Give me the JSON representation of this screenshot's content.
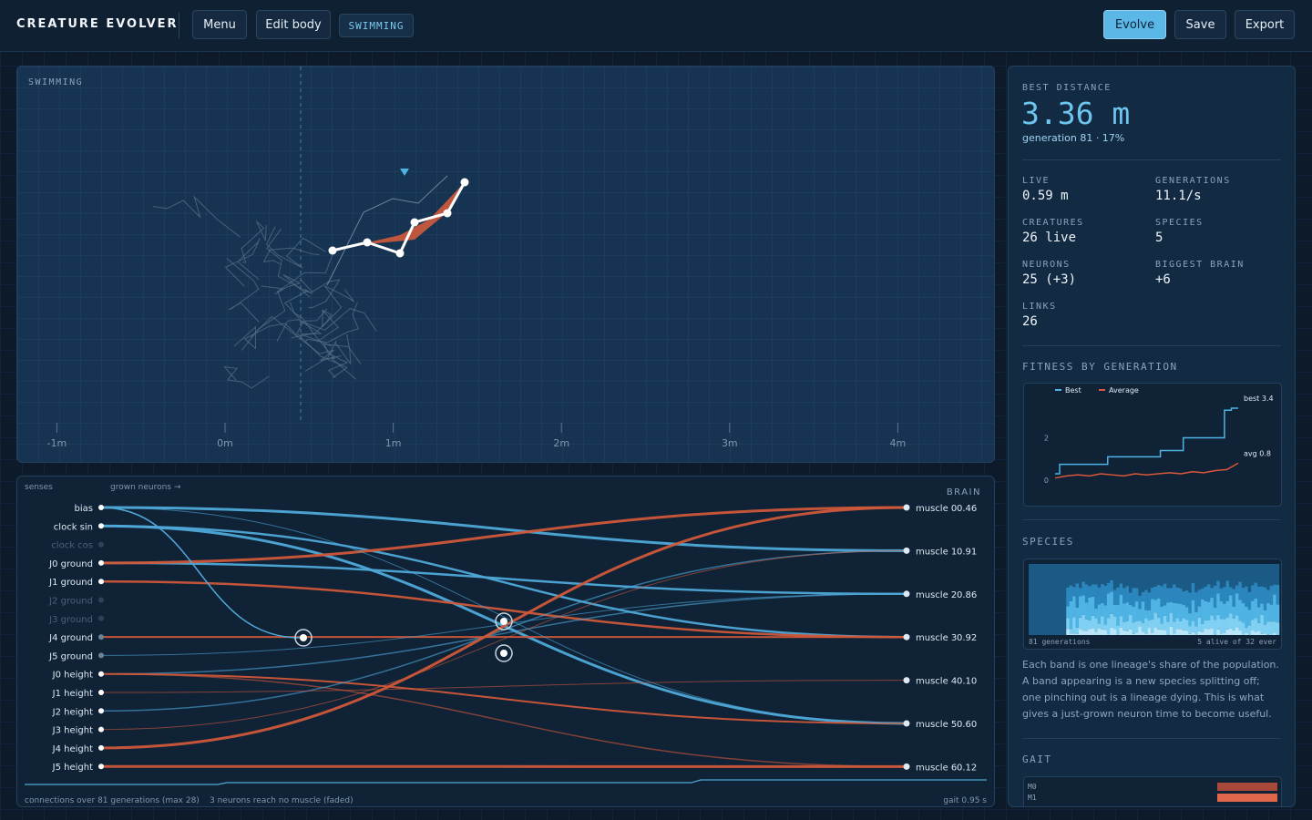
{
  "header": {
    "title": "CREATURE EVOLVER",
    "buttons_left": [
      "Menu",
      "Edit body"
    ],
    "mode_badge": "SWIMMING",
    "buttons_right": [
      "Evolve",
      "Save",
      "Export"
    ]
  },
  "world": {
    "label": "SWIMMING",
    "axis_ticks": [
      {
        "value": -1,
        "label": "-1m"
      },
      {
        "value": 0,
        "label": "0m"
      },
      {
        "value": 1,
        "label": "1m"
      },
      {
        "value": 2,
        "label": "2m"
      },
      {
        "value": 3,
        "label": "3m"
      },
      {
        "value": 4,
        "label": "4m"
      }
    ]
  },
  "stats": {
    "best_label": "BEST DISTANCE",
    "best_value": "3.36 m",
    "best_sub": "generation 81 · 17%",
    "items": [
      {
        "label": "LIVE",
        "value": "0.59 m"
      },
      {
        "label": "GENERATIONS",
        "value": "11.1/s"
      },
      {
        "label": "CREATURES",
        "value": "26 live"
      },
      {
        "label": "SPECIES",
        "value": "5"
      },
      {
        "label": "NEURONS",
        "value": "25 (+3)"
      },
      {
        "label": "BIGGEST BRAIN",
        "value": "+6"
      },
      {
        "label": "LINKS",
        "value": "26"
      }
    ]
  },
  "fitness": {
    "title": "FITNESS BY GENERATION",
    "chart_data": {
      "type": "line",
      "xlim": [
        0,
        80
      ],
      "ylim": [
        0,
        3.7
      ],
      "yticks": [
        0,
        2
      ],
      "series": [
        {
          "name": "Best",
          "color": "#4fb3e3",
          "step": true,
          "end_label": "best 3.4",
          "x": [
            0,
            2,
            23,
            46,
            56,
            74,
            77,
            80
          ],
          "values": [
            0.3,
            0.75,
            1.1,
            1.4,
            2.0,
            3.3,
            3.4,
            3.4
          ]
        },
        {
          "name": "Average",
          "color": "#d9583b",
          "end_label": "avg 0.8",
          "x": [
            0,
            5,
            10,
            15,
            20,
            25,
            30,
            35,
            40,
            45,
            50,
            55,
            60,
            65,
            70,
            75,
            80
          ],
          "values": [
            0.1,
            0.2,
            0.25,
            0.2,
            0.3,
            0.25,
            0.2,
            0.3,
            0.25,
            0.3,
            0.35,
            0.3,
            0.4,
            0.35,
            0.45,
            0.5,
            0.8
          ]
        }
      ]
    }
  },
  "species": {
    "title": "SPECIES",
    "footer_left": "81 generations",
    "footer_right": "5 alive of 32 ever",
    "caption": "Each band is one lineage's share of the population. A band appearing is a new species splitting off; one pinching out is a lineage dying. This is what gives a just-grown neuron time to become useful."
  },
  "gait": {
    "title": "GAIT",
    "rows": [
      "M0",
      "M1"
    ]
  },
  "brain": {
    "senses_header": "senses",
    "grown_header": "grown neurons →",
    "title": "BRAIN",
    "senses": [
      "bias",
      "clock sin",
      "clock cos",
      "J0 ground",
      "J1 ground",
      "J2 ground",
      "J3 ground",
      "J4 ground",
      "J5 ground",
      "J0 height",
      "J1 height",
      "J2 height",
      "J3 height",
      "J4 height",
      "J5 height"
    ],
    "muscles": [
      {
        "name": "muscle 0",
        "value": "0.46"
      },
      {
        "name": "muscle 1",
        "value": "0.91"
      },
      {
        "name": "muscle 2",
        "value": "0.86"
      },
      {
        "name": "muscle 3",
        "value": "0.92"
      },
      {
        "name": "muscle 4",
        "value": "0.10"
      },
      {
        "name": "muscle 5",
        "value": "0.60"
      },
      {
        "name": "muscle 6",
        "value": "0.12"
      }
    ],
    "footer_left": "connections over 81 generations (max 28)",
    "footer_mid": "3 neurons reach no muscle (faded)",
    "footer_right": "gait 0.95 s"
  }
}
